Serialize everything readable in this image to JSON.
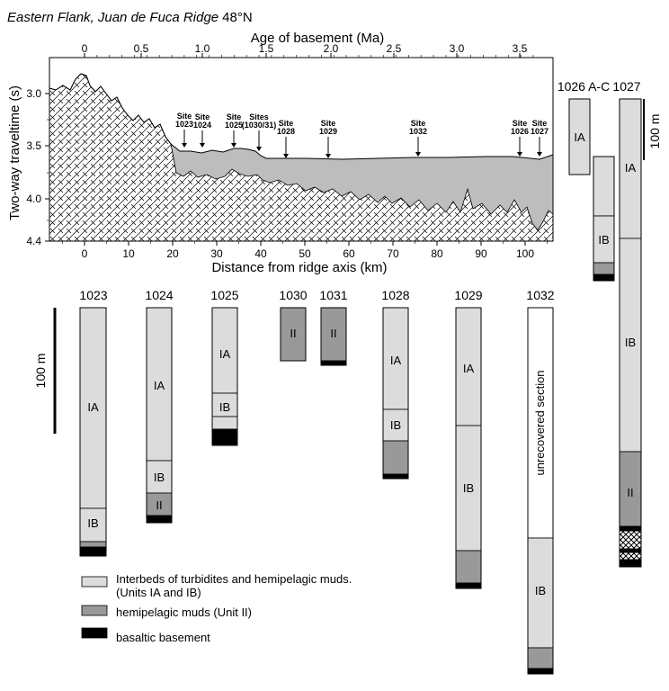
{
  "title": {
    "italic": "Eastern Flank, Juan de Fuca Ridge",
    "plain": "48°N"
  },
  "top_axis": {
    "label": "Age of basement (Ma)",
    "ticks": [
      "0",
      "0.5",
      "1.0",
      "1.5",
      "2.0",
      "2.5",
      "3.0",
      "3.5"
    ]
  },
  "bottom_axis": {
    "label": "Distance from ridge axis (km)",
    "ticks": [
      "0",
      "10",
      "20",
      "30",
      "40",
      "50",
      "60",
      "70",
      "80",
      "90",
      "100"
    ]
  },
  "left_axis": {
    "label": "Two-way traveltime (s)",
    "ticks": [
      "3.0",
      "3.5",
      "4.0",
      "4.4"
    ]
  },
  "site_markers": [
    {
      "line1": "Site",
      "line2": "1023"
    },
    {
      "line1": "Site",
      "line2": "1024"
    },
    {
      "line1": "Site",
      "line2": "1025"
    },
    {
      "line1": "Sites",
      "line2": "(1030/31)"
    },
    {
      "line1": "Site",
      "line2": "1028"
    },
    {
      "line1": "Site",
      "line2": "1029"
    },
    {
      "line1": "Site",
      "line2": "1032"
    },
    {
      "line1": "Site",
      "line2": "1026"
    },
    {
      "line1": "Site",
      "line2": "1027"
    }
  ],
  "columns": [
    {
      "name": "1023",
      "units": [
        "IA",
        "IB"
      ]
    },
    {
      "name": "1024",
      "units": [
        "IA",
        "IB",
        "II"
      ]
    },
    {
      "name": "1025",
      "units": [
        "IA",
        "IB"
      ]
    },
    {
      "name": "1030",
      "units": [
        "II"
      ]
    },
    {
      "name": "1031",
      "units": [
        "II"
      ]
    },
    {
      "name": "1028",
      "units": [
        "IA",
        "IB"
      ]
    },
    {
      "name": "1029",
      "units": [
        "IA",
        "IB"
      ]
    },
    {
      "name": "1032",
      "units": [
        "unrecovered section",
        "IB"
      ]
    },
    {
      "name": "1026 A-C",
      "units": [
        "IA",
        "IB"
      ]
    },
    {
      "name": "1027",
      "units": [
        "IA",
        "IB",
        "II"
      ]
    }
  ],
  "scale_bars": [
    {
      "label": "100 m"
    },
    {
      "label": "100 m"
    }
  ],
  "legend": [
    {
      "line1": "Interbeds of turbidites and hemipelagic muds.",
      "line2": "(Units IA and IB)",
      "color": "#dcdcdc"
    },
    {
      "line1": "hemipelagic muds (Unit II)",
      "line2": "",
      "color": "#999999"
    },
    {
      "line1": "basaltic basement",
      "line2": "",
      "color": "#000000"
    }
  ],
  "colors": {
    "turbidite": "#dcdcdc",
    "hemipelagic": "#999999",
    "basement": "#000000",
    "sediment_wedge": "#bdbdbd"
  }
}
